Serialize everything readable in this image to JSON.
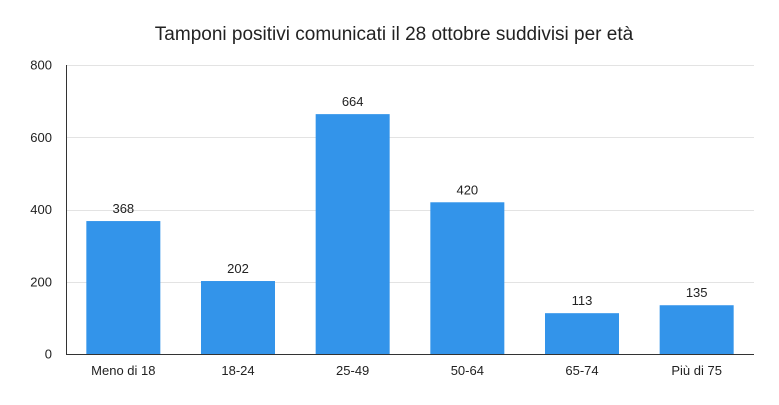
{
  "chart_data": {
    "type": "bar",
    "title": "Tamponi positivi comunicati il 28 ottobre suddivisi per età",
    "xlabel": "",
    "ylabel": "",
    "categories": [
      "Meno di 18",
      "18-24",
      "25-49",
      "50-64",
      "65-74",
      "Più di 75"
    ],
    "values": [
      368,
      202,
      664,
      420,
      113,
      135
    ],
    "ylim": [
      0,
      800
    ],
    "yticks": [
      0,
      200,
      400,
      600,
      800
    ],
    "grid": true,
    "legend": "none",
    "bar_color": "#3394ea"
  }
}
